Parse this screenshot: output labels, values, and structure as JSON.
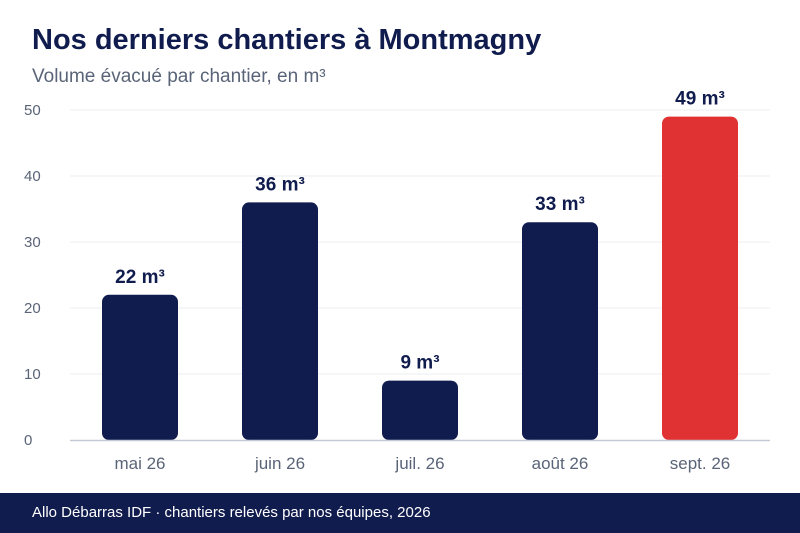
{
  "chart_data": {
    "type": "bar",
    "title": "Nos derniers chantiers à Montmagny",
    "subtitle": "Volume évacué par chantier, en m³",
    "categories": [
      "mai 26",
      "juin 26",
      "juil. 26",
      "août 26",
      "sept. 26"
    ],
    "values": [
      22,
      36,
      9,
      33,
      49
    ],
    "value_labels": [
      "22 m³",
      "36 m³",
      "9 m³",
      "33 m³",
      "49 m³"
    ],
    "y_ticks": [
      "0",
      "10",
      "20",
      "30",
      "40",
      "50"
    ],
    "ylim": [
      0,
      50
    ],
    "grid": true,
    "xlabel": "",
    "ylabel": "",
    "colors": {
      "bar": "#111c4e",
      "highlight": "#e03232",
      "grid": "#e9ecf0",
      "axis": "#c5c9d6",
      "tick_text": "#5a6478",
      "label_text": "#111c4e"
    },
    "highlight_index": 4
  },
  "footer": {
    "text": "Allo Débarras IDF · chantiers relevés par nos équipes, 2026"
  }
}
